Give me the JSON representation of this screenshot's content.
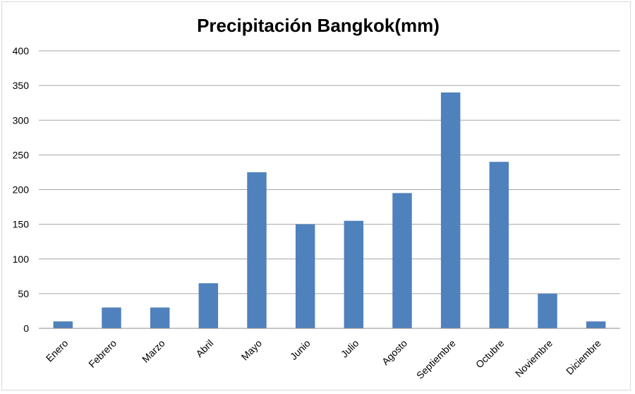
{
  "chart_data": {
    "type": "bar",
    "title": "Precipitación Bangkok(mm)",
    "categories": [
      "Enero",
      "Febrero",
      "Marzo",
      "Abril",
      "Mayo",
      "Junio",
      "Julio",
      "Agosto",
      "Septiembre",
      "Octubre",
      "Noviembre",
      "Diciembre"
    ],
    "values": [
      10,
      30,
      30,
      65,
      225,
      150,
      155,
      195,
      340,
      240,
      50,
      10
    ],
    "ylim": [
      0,
      400
    ],
    "yticks": [
      0,
      50,
      100,
      150,
      200,
      250,
      300,
      350,
      400
    ],
    "xlabel": "",
    "ylabel": "",
    "grid": true,
    "legend": "none",
    "bar_color": "#4f81bd"
  }
}
